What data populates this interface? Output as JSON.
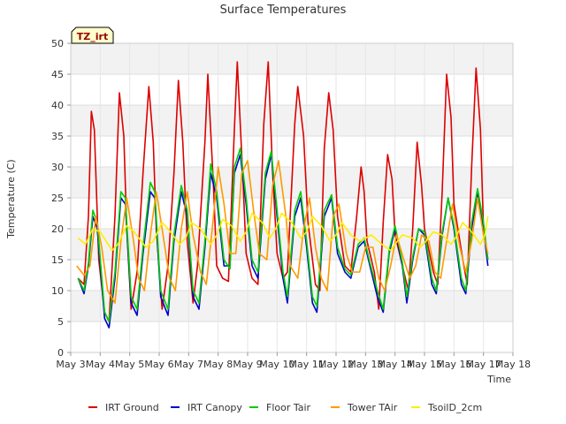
{
  "chart_data": {
    "type": "line",
    "title": "Surface Temperatures",
    "xlabel": "Time",
    "ylabel": "Temperature (C)",
    "annotation": "TZ_irt",
    "xlim": [
      3,
      18
    ],
    "ylim": [
      0,
      50
    ],
    "yticks": [
      0,
      5,
      10,
      15,
      20,
      25,
      30,
      35,
      40,
      45,
      50
    ],
    "xticks": [
      {
        "v": 3,
        "label": "May 3"
      },
      {
        "v": 4,
        "label": "May 4"
      },
      {
        "v": 5,
        "label": "May 5"
      },
      {
        "v": 6,
        "label": "May 6"
      },
      {
        "v": 7,
        "label": "May 7"
      },
      {
        "v": 8,
        "label": "May 8"
      },
      {
        "v": 9,
        "label": "May 9"
      },
      {
        "v": 10,
        "label": "May 10"
      },
      {
        "v": 11,
        "label": "May 11"
      },
      {
        "v": 12,
        "label": "May 12"
      },
      {
        "v": 13,
        "label": "May 13"
      },
      {
        "v": 14,
        "label": "May 14"
      },
      {
        "v": 15,
        "label": "May 15"
      },
      {
        "v": 16,
        "label": "May 16"
      },
      {
        "v": 17,
        "label": "May 17"
      },
      {
        "v": 18,
        "label": "May 18"
      }
    ],
    "grid": true,
    "legend_position": "bottom",
    "series": [
      {
        "name": "IRT Ground",
        "color": "#dd0000",
        "x": [
          3.25,
          3.45,
          3.6,
          3.7,
          3.8,
          3.95,
          4.15,
          4.3,
          4.5,
          4.65,
          4.8,
          4.9,
          5.05,
          5.25,
          5.45,
          5.65,
          5.8,
          5.9,
          6.1,
          6.3,
          6.5,
          6.65,
          6.8,
          6.95,
          7.15,
          7.3,
          7.55,
          7.65,
          7.85,
          7.95,
          8.15,
          8.35,
          8.55,
          8.65,
          8.85,
          8.95,
          9.15,
          9.35,
          9.55,
          9.7,
          9.85,
          10.0,
          10.2,
          10.35,
          10.6,
          10.7,
          10.9,
          11.05,
          11.3,
          11.45,
          11.6,
          11.75,
          11.9,
          12.05,
          12.3,
          12.5,
          12.7,
          12.85,
          12.95,
          13.05,
          13.3,
          13.45,
          13.6,
          13.75,
          13.9,
          14.0,
          14.3,
          14.45,
          14.6,
          14.75,
          14.9,
          15.0,
          15.3,
          15.45,
          15.6,
          15.75,
          15.9,
          16.0,
          16.3,
          16.45,
          16.6,
          16.75,
          16.9,
          17.0,
          17.15
        ],
        "y": [
          12,
          11,
          22,
          39,
          36,
          15,
          6.5,
          5,
          22,
          42,
          35,
          20,
          7,
          13,
          29,
          43,
          34,
          20,
          7,
          14,
          29,
          44,
          34,
          18,
          8,
          14,
          34,
          45,
          26,
          14,
          12,
          11.5,
          36,
          47,
          27,
          16,
          12,
          11,
          37,
          47,
          29,
          16,
          12,
          13,
          37,
          43,
          35,
          21,
          11,
          10,
          33,
          42,
          36,
          22,
          14,
          13,
          22,
          30,
          26,
          18,
          13,
          7,
          21,
          32,
          28,
          19,
          13,
          10,
          20,
          34,
          27,
          20,
          13,
          11,
          26,
          45,
          38,
          24,
          15,
          11,
          30,
          46,
          36,
          20,
          15
        ]
      },
      {
        "name": "IRT Canopy",
        "color": "#0000cc",
        "x": [
          3.25,
          3.45,
          3.6,
          3.75,
          3.9,
          4.15,
          4.3,
          4.5,
          4.7,
          4.85,
          5.05,
          5.25,
          5.45,
          5.7,
          5.85,
          6.05,
          6.3,
          6.5,
          6.75,
          6.95,
          7.15,
          7.35,
          7.55,
          7.75,
          7.95,
          8.2,
          8.4,
          8.55,
          8.75,
          8.95,
          9.15,
          9.35,
          9.6,
          9.8,
          10.0,
          10.2,
          10.35,
          10.6,
          10.8,
          11.0,
          11.2,
          11.35,
          11.6,
          11.85,
          12.05,
          12.3,
          12.5,
          12.75,
          12.95,
          13.15,
          13.4,
          13.6,
          13.8,
          14.0,
          14.25,
          14.4,
          14.6,
          14.8,
          15.0,
          15.25,
          15.4,
          15.6,
          15.8,
          16.0,
          16.25,
          16.4,
          16.6,
          16.8,
          17.0,
          17.15
        ],
        "y": [
          12,
          9.5,
          14,
          22,
          20,
          5.5,
          4,
          12,
          25,
          24,
          8,
          6,
          16,
          26,
          25,
          9,
          6,
          18,
          26,
          22,
          9,
          7,
          17,
          29,
          25,
          14,
          14,
          29,
          32,
          24,
          14,
          12,
          28,
          32,
          22,
          12,
          8,
          22,
          25,
          17,
          8,
          6.5,
          22,
          25,
          16,
          13,
          12,
          17,
          18,
          14,
          9,
          6.5,
          16,
          20,
          14,
          8,
          15,
          20,
          19,
          11,
          9.5,
          19,
          25,
          20,
          11,
          9.5,
          20,
          26,
          20,
          14
        ]
      },
      {
        "name": "Floor Tair",
        "color": "#00cc00",
        "x": [
          3.25,
          3.45,
          3.6,
          3.75,
          3.9,
          4.15,
          4.3,
          4.5,
          4.7,
          4.85,
          5.05,
          5.25,
          5.45,
          5.7,
          5.85,
          6.05,
          6.3,
          6.5,
          6.75,
          6.95,
          7.15,
          7.35,
          7.55,
          7.75,
          7.95,
          8.2,
          8.4,
          8.55,
          8.75,
          8.95,
          9.15,
          9.35,
          9.6,
          9.8,
          10.0,
          10.2,
          10.35,
          10.6,
          10.8,
          11.0,
          11.2,
          11.35,
          11.6,
          11.85,
          12.05,
          12.3,
          12.5,
          12.75,
          12.95,
          13.15,
          13.4,
          13.6,
          13.8,
          14.0,
          14.25,
          14.4,
          14.6,
          14.8,
          15.0,
          15.25,
          15.4,
          15.6,
          15.8,
          16.0,
          16.25,
          16.4,
          16.6,
          16.8,
          17.0,
          17.15
        ],
        "y": [
          12,
          10,
          14.5,
          23,
          21,
          6.5,
          5,
          13,
          26,
          25,
          9,
          7,
          17,
          27.5,
          26,
          10,
          7,
          19,
          27,
          23,
          10,
          8,
          18,
          30.5,
          26,
          15,
          13.5,
          30,
          33,
          25,
          15,
          13,
          29,
          32.5,
          23,
          13,
          9,
          23,
          26,
          18,
          9,
          7.5,
          23,
          25.5,
          17,
          13.5,
          12.5,
          17.5,
          18.5,
          14.5,
          10,
          7,
          16.5,
          20.5,
          14.5,
          9,
          15.5,
          20,
          19.5,
          12,
          10,
          19.5,
          25,
          20.5,
          12,
          10,
          21,
          26.5,
          21,
          15
        ]
      },
      {
        "name": "Tower TAir",
        "color": "#ff9900",
        "x": [
          3.2,
          3.45,
          3.65,
          3.85,
          4.05,
          4.25,
          4.5,
          4.7,
          4.9,
          5.1,
          5.3,
          5.5,
          5.7,
          5.9,
          6.1,
          6.35,
          6.55,
          6.75,
          6.95,
          7.15,
          7.4,
          7.6,
          7.8,
          8.0,
          8.2,
          8.4,
          8.6,
          8.8,
          9.0,
          9.2,
          9.4,
          9.65,
          9.85,
          10.05,
          10.3,
          10.45,
          10.7,
          10.9,
          11.1,
          11.3,
          11.5,
          11.7,
          11.9,
          12.1,
          12.35,
          12.55,
          12.8,
          13.0,
          13.25,
          13.45,
          13.65,
          13.85,
          14.05,
          14.3,
          14.5,
          14.7,
          14.9,
          15.15,
          15.35,
          15.55,
          15.75,
          15.95,
          16.2,
          16.4,
          16.6,
          16.8,
          17.0,
          17.15
        ],
        "y": [
          14,
          12.5,
          14,
          22,
          17,
          10,
          8,
          18,
          25,
          19,
          12,
          10,
          19,
          26,
          20,
          12,
          10,
          20,
          26,
          19,
          13,
          11,
          20,
          30,
          24,
          16,
          16,
          29,
          31,
          23,
          16,
          15,
          27,
          31,
          22,
          14,
          12,
          20,
          25,
          17,
          12,
          10,
          22,
          24,
          16,
          13,
          13,
          17,
          17,
          12,
          10,
          14,
          19,
          15,
          12,
          14,
          19,
          18,
          13,
          12,
          18,
          24,
          17,
          13,
          18,
          25,
          19,
          16
        ]
      },
      {
        "name": "TsoilD_2cm",
        "color": "#ffee00",
        "x": [
          3.25,
          3.5,
          3.75,
          4.0,
          4.4,
          4.6,
          4.9,
          5.15,
          5.55,
          5.8,
          6.1,
          6.3,
          6.7,
          6.9,
          7.1,
          7.4,
          7.75,
          7.95,
          8.15,
          8.45,
          8.75,
          8.95,
          9.15,
          9.5,
          9.75,
          9.95,
          10.15,
          10.5,
          10.8,
          11.0,
          11.2,
          11.5,
          11.8,
          12.0,
          12.2,
          12.5,
          12.8,
          13.0,
          13.2,
          13.55,
          13.85,
          14.0,
          14.25,
          14.6,
          14.85,
          15.05,
          15.3,
          15.6,
          15.9,
          16.05,
          16.3,
          16.6,
          16.9,
          17.05,
          17.15
        ],
        "y": [
          18.5,
          17.5,
          20,
          19.5,
          16.5,
          17.5,
          20.5,
          19.5,
          17,
          18,
          21,
          20,
          17.5,
          18.5,
          21,
          20,
          17.5,
          19,
          21.5,
          20.5,
          18,
          19.5,
          22.5,
          21,
          18.5,
          20,
          22.5,
          21,
          18.5,
          19.5,
          22,
          20.5,
          18,
          19,
          21,
          19,
          18,
          18.5,
          19,
          17.5,
          16.5,
          17.5,
          19,
          18.5,
          17,
          18,
          19.5,
          19,
          17.5,
          18.5,
          21,
          19.5,
          17.5,
          19,
          22
        ]
      }
    ]
  }
}
